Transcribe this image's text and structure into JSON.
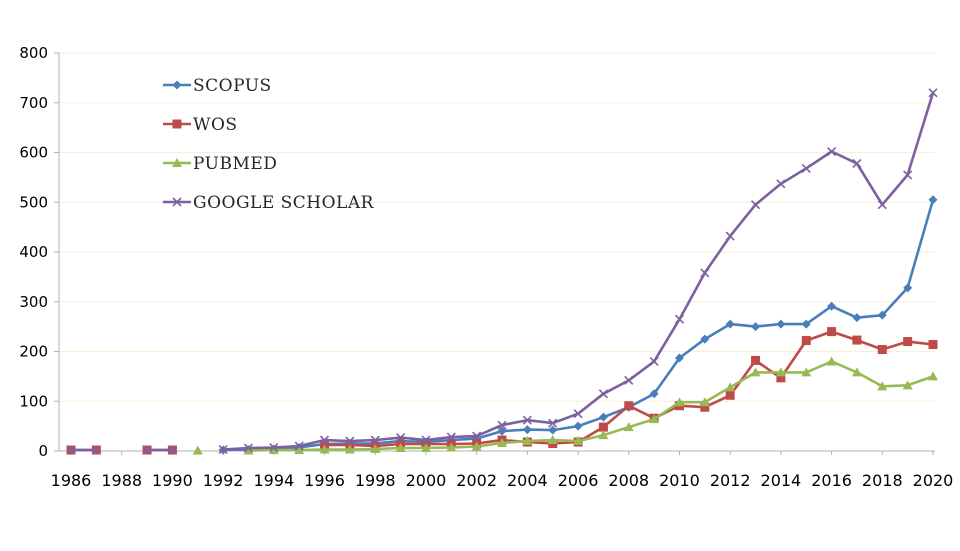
{
  "chart_data": {
    "type": "line",
    "title": "",
    "xlabel": "",
    "ylabel": "",
    "ylim": [
      0,
      800
    ],
    "yticks": [
      0,
      100,
      200,
      300,
      400,
      500,
      600,
      700,
      800
    ],
    "xlim": [
      1986,
      2020
    ],
    "xticks": [
      1986,
      1988,
      1990,
      1992,
      1994,
      1996,
      1998,
      2000,
      2002,
      2004,
      2006,
      2008,
      2010,
      2012,
      2014,
      2016,
      2018,
      2020
    ],
    "grid": "horizontal",
    "legend_position": "top-left",
    "series": [
      {
        "name": "SCOPUS",
        "color": "#4A7EBB",
        "marker": "diamond",
        "x": [
          1992,
          1993,
          1994,
          1995,
          1996,
          1997,
          1998,
          1999,
          2000,
          2001,
          2002,
          2003,
          2004,
          2005,
          2006,
          2007,
          2008,
          2009,
          2010,
          2011,
          2012,
          2013,
          2014,
          2015,
          2016,
          2017,
          2018,
          2019,
          2020
        ],
        "values": [
          2,
          3,
          4,
          7,
          14,
          15,
          15,
          20,
          18,
          22,
          25,
          40,
          43,
          42,
          50,
          68,
          88,
          115,
          187,
          225,
          255,
          250,
          255,
          255,
          291,
          268,
          273,
          328,
          505
        ]
      },
      {
        "name": "WOS",
        "color": "#BE4B48",
        "marker": "square",
        "x": [
          1986,
          1987,
          1989,
          1990,
          1996,
          1997,
          1998,
          1999,
          2000,
          2001,
          2002,
          2003,
          2004,
          2005,
          2006,
          2007,
          2008,
          2009,
          2010,
          2011,
          2012,
          2013,
          2014,
          2015,
          2016,
          2017,
          2018,
          2019,
          2020
        ],
        "values": [
          2,
          2,
          2,
          2,
          12,
          12,
          10,
          14,
          14,
          14,
          15,
          22,
          18,
          15,
          18,
          48,
          91,
          66,
          91,
          88,
          112,
          182,
          147,
          222,
          240,
          223,
          204,
          220,
          214
        ]
      },
      {
        "name": "PUBMED",
        "color": "#98B954",
        "marker": "triangle",
        "x": [
          1991,
          1993,
          1994,
          1995,
          1996,
          1997,
          1998,
          1999,
          2000,
          2001,
          2002,
          2003,
          2004,
          2005,
          2006,
          2007,
          2008,
          2009,
          2010,
          2011,
          2012,
          2013,
          2014,
          2015,
          2016,
          2017,
          2018,
          2019,
          2020
        ],
        "values": [
          1,
          1,
          2,
          2,
          3,
          3,
          4,
          6,
          6,
          7,
          9,
          16,
          20,
          22,
          20,
          32,
          48,
          64,
          98,
          98,
          128,
          158,
          158,
          158,
          180,
          158,
          130,
          132,
          150
        ]
      },
      {
        "name": "GOOGLE SCHOLAR",
        "color": "#7D60A0",
        "marker": "x",
        "x": [
          1986,
          1987,
          1989,
          1990,
          1992,
          1993,
          1994,
          1995,
          1996,
          1997,
          1998,
          1999,
          2000,
          2001,
          2002,
          2003,
          2004,
          2005,
          2006,
          2007,
          2008,
          2009,
          2010,
          2011,
          2012,
          2013,
          2014,
          2015,
          2016,
          2017,
          2018,
          2019,
          2020
        ],
        "values": [
          2,
          2,
          2,
          2,
          3,
          6,
          7,
          10,
          22,
          20,
          22,
          27,
          22,
          28,
          30,
          52,
          62,
          56,
          75,
          115,
          142,
          180,
          265,
          358,
          432,
          495,
          537,
          568,
          602,
          578,
          495,
          555,
          720
        ]
      }
    ]
  }
}
